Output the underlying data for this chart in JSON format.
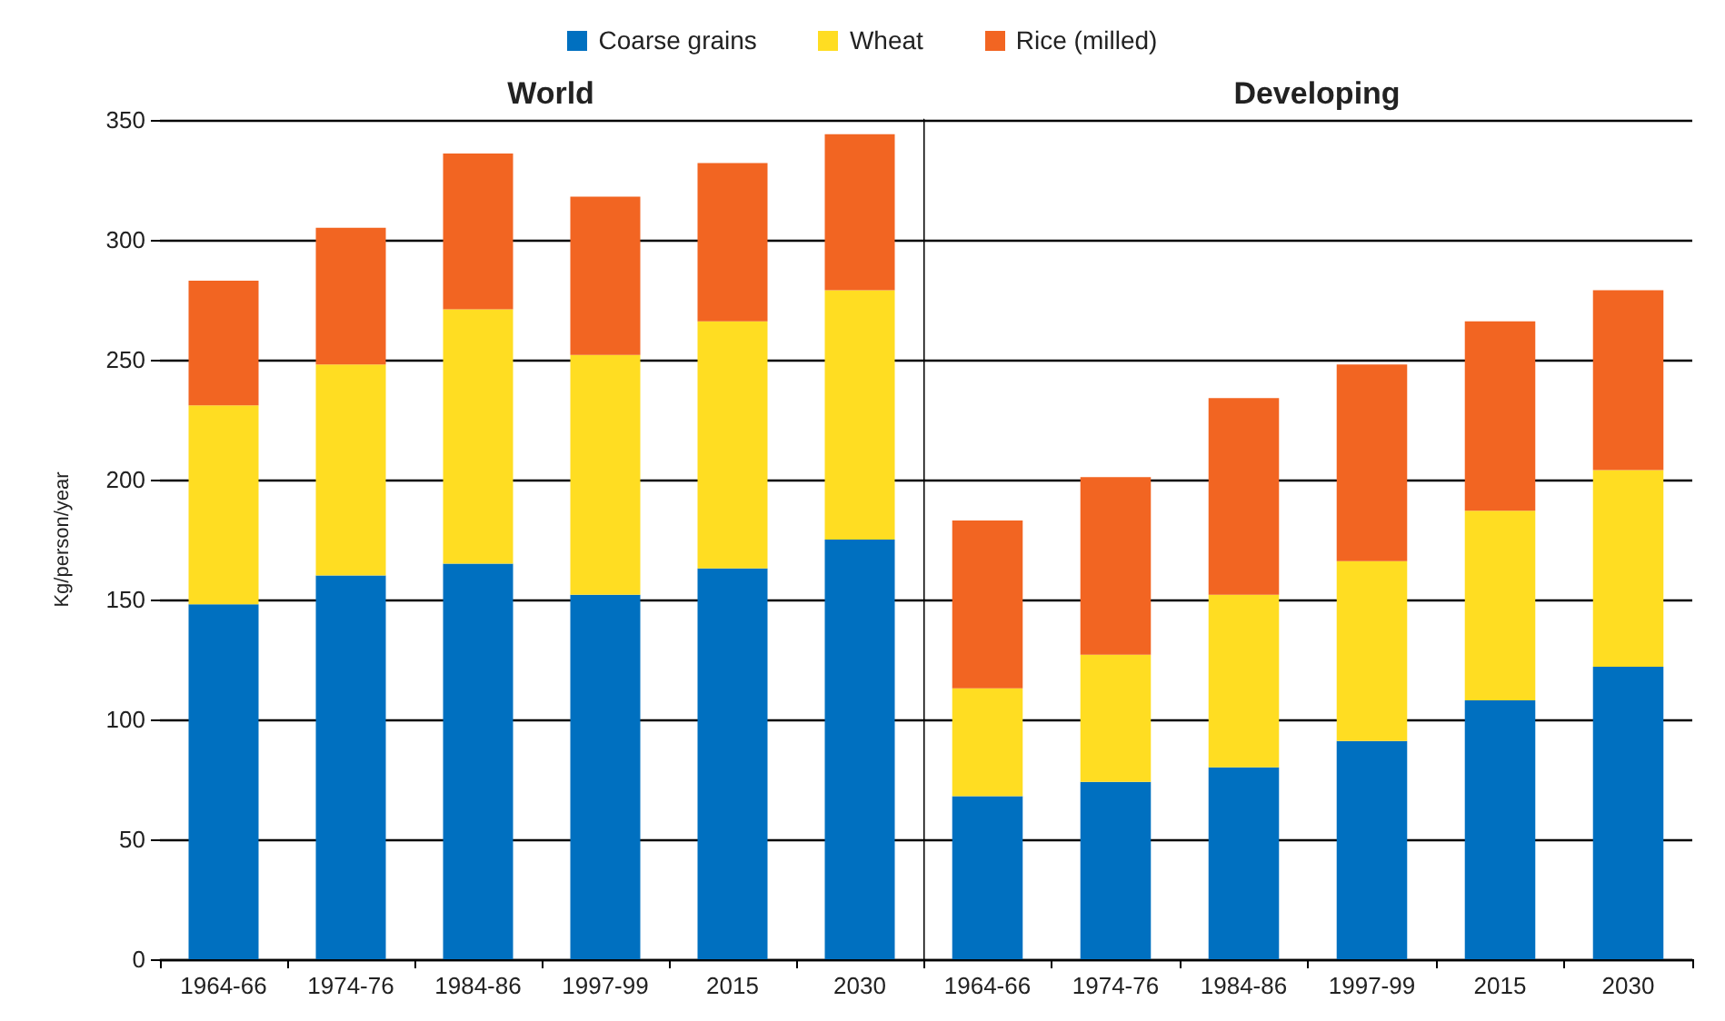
{
  "chart_data": [
    {
      "type": "bar",
      "title": "World",
      "ylabel": "Kg/person/year",
      "categories": [
        "1964-66",
        "1974-76",
        "1984-86",
        "1997-99",
        "2015",
        "2030"
      ],
      "stacked": true,
      "ylim": [
        0,
        350
      ],
      "yticks": [
        0,
        50,
        100,
        150,
        200,
        250,
        300,
        350
      ],
      "grid": "y",
      "legend": "top",
      "series": [
        {
          "name": "Coarse grains",
          "color": "#0070c0",
          "values": [
            148,
            160,
            165,
            152,
            163,
            175
          ]
        },
        {
          "name": "Wheat",
          "color": "#ffdd22",
          "values": [
            83,
            88,
            106,
            100,
            103,
            104
          ]
        },
        {
          "name": "Rice (milled)",
          "color": "#f26522",
          "values": [
            52,
            57,
            65,
            66,
            66,
            65
          ]
        }
      ]
    },
    {
      "type": "bar",
      "title": "Developing",
      "categories": [
        "1964-66",
        "1974-76",
        "1984-86",
        "1997-99",
        "2015",
        "2030"
      ],
      "stacked": true,
      "ylim": [
        0,
        350
      ],
      "yticks": [
        0,
        50,
        100,
        150,
        200,
        250,
        300,
        350
      ],
      "grid": "y",
      "tick_labels": "x",
      "series": [
        {
          "color": "#0070c0",
          "values": [
            68,
            74,
            80,
            91,
            108,
            122
          ]
        },
        {
          "color": "#ffdd22",
          "values": [
            45,
            53,
            72,
            75,
            79,
            82
          ]
        },
        {
          "color": "#f26522",
          "values": [
            70,
            74,
            82,
            82,
            79,
            75
          ]
        }
      ]
    }
  ]
}
